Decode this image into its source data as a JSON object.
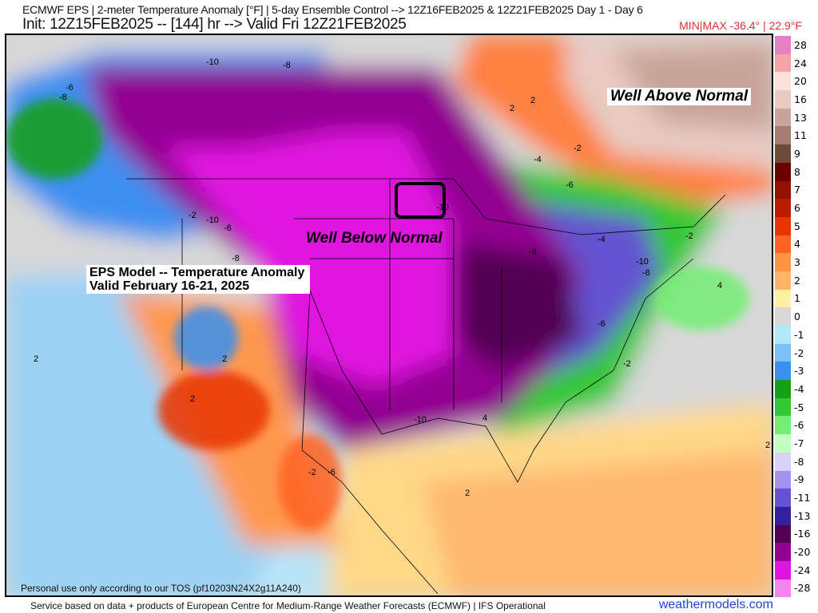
{
  "header": {
    "line1": "ECMWF EPS | 2-meter Temperature Anomaly [°F] | 5-day Ensemble Control --> 12Z16FEB2025 & 12Z21FEB2025   Day 1 - Day 6",
    "line2": "Init: 12Z15FEB2025 -- [144] hr --> Valid Fri 12Z21FEB2025",
    "minmax": "MIN|MAX -36.4° | 22.9°F"
  },
  "map": {
    "annotation_above": "Well Above Normal",
    "annotation_below": "Well Below Normal",
    "model_note_line1": "EPS Model -- Temperature Anomaly",
    "model_note_line2": "Valid February 16-21, 2025",
    "tos": "Personal use only according to our TOS (pf10203N24X2g11A240)",
    "contour_labels": [
      "-10",
      "-8",
      "-6",
      "-8",
      "-4",
      "-2",
      "2",
      "2",
      "-2",
      "-4",
      "-6",
      "-10",
      "-2",
      "-10",
      "-6",
      "-8",
      "-8",
      "-10",
      "-8",
      "4",
      "-6",
      "-2",
      "-10",
      "4",
      "2",
      "2",
      "-2",
      "-6",
      "2",
      "2",
      "2"
    ]
  },
  "legend": {
    "labels": [
      "28",
      "24",
      "20",
      "16",
      "13",
      "11",
      "9",
      "8",
      "7",
      "6",
      "5",
      "4",
      "3",
      "2",
      "1",
      "0",
      "-1",
      "-2",
      "-3",
      "-4",
      "-5",
      "-6",
      "-7",
      "-8",
      "-9",
      "-11",
      "-13",
      "-16",
      "-20",
      "-24",
      "-28"
    ],
    "colors": [
      "#e880c8",
      "#f4a4a4",
      "#f8e2dc",
      "#e8cac2",
      "#c8a49a",
      "#a47c72",
      "#6e4a3a",
      "#6a0000",
      "#921200",
      "#ba1c00",
      "#e83400",
      "#ff6424",
      "#ff9444",
      "#ffb468",
      "#fff0a4",
      "#d8d8d8",
      "#b0e8fa",
      "#7cc0f8",
      "#3890f0",
      "#16a016",
      "#34c834",
      "#74ee74",
      "#c4ffc4",
      "#d8d2f8",
      "#a492f0",
      "#6452d0",
      "#3220a0",
      "#520052",
      "#920092",
      "#e014e0",
      "#f484f0"
    ]
  },
  "footer": {
    "credit": "Service based on data + products of European Centre for Medium-Range Weather Forecasts (ECMWF) | IFS Operational",
    "brand": "weathermodels.com"
  }
}
